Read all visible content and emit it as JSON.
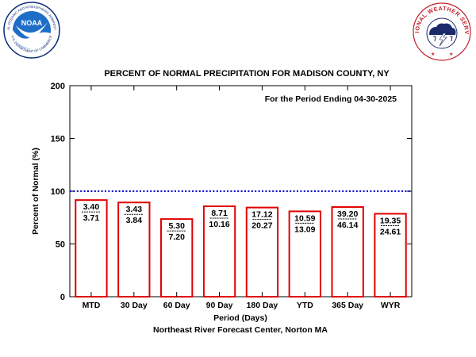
{
  "logos": {
    "noaa_text": "NOAA",
    "noaa_ring_text": "NATIONAL OCEANIC AND ATMOSPHERIC ADMINISTRATION",
    "noaa_dept_text": "U.S. DEPARTMENT OF COMMERCE",
    "nws_ring_text": "NATIONAL WEATHER SERVICE"
  },
  "colors": {
    "bar_outline": "#e00000",
    "reference_line": "#0000cc",
    "noaa_blue": "#1e6ec8",
    "noaa_dark": "#0a2a7a",
    "nws_red": "#c0202a"
  },
  "chart_data": {
    "type": "bar",
    "title": "PERCENT OF NORMAL PRECIPITATION FOR MADISON COUNTY, NY",
    "annotation": "For the Period Ending 04-30-2025",
    "xlabel": "Period (Days)",
    "ylabel": "Percent of Normal (%)",
    "credit": "Northeast River Forecast Center, Norton MA",
    "ylim": [
      0,
      200
    ],
    "yticks": [
      0,
      50,
      100,
      150,
      200
    ],
    "reference_line": 100,
    "categories": [
      "MTD",
      "30 Day",
      "60 Day",
      "90 Day",
      "180 Day",
      "YTD",
      "365 Day",
      "WYR"
    ],
    "values": [
      91.6,
      89.3,
      73.6,
      85.7,
      84.5,
      80.9,
      85.0,
      78.6
    ],
    "observed": [
      "3.40",
      "3.43",
      "5.30",
      "8.71",
      "17.12",
      "10.59",
      "39.20",
      "19.35"
    ],
    "normal": [
      "3.71",
      "3.84",
      "7.20",
      "10.16",
      "20.27",
      "13.09",
      "46.14",
      "24.61"
    ]
  }
}
